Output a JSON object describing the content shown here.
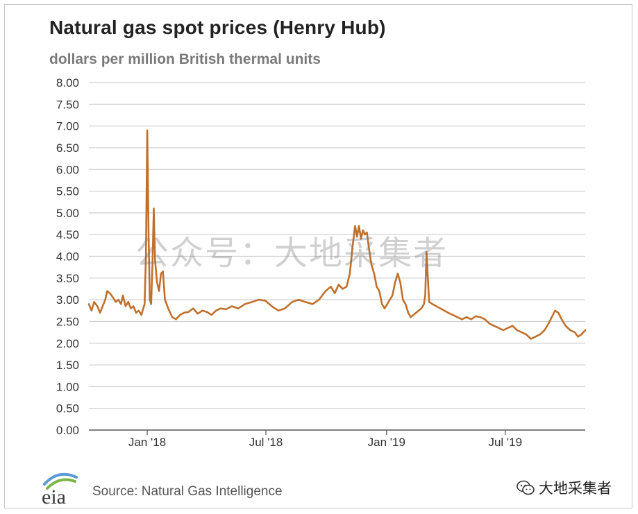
{
  "header": {
    "title": "Natural gas spot prices (Henry Hub)",
    "subtitle": "dollars per million British thermal units"
  },
  "footer": {
    "source": "Source: Natural Gas Intelligence",
    "logo_text": "eia",
    "wechat_label": "大地采集者"
  },
  "watermark": "公众号：大地采集者",
  "colors": {
    "line": "#c0702b",
    "grid": "#cfcfcf",
    "axis": "#555555"
  },
  "chart_data": {
    "type": "line",
    "title": "Natural gas spot prices (Henry Hub)",
    "ylabel": "dollars per million British thermal units",
    "xlabel": "",
    "ylim": [
      0,
      8
    ],
    "xlim": [
      "2017-10-04",
      "2019-10-31"
    ],
    "grid": true,
    "yticks": [
      "0.00",
      "0.50",
      "1.00",
      "1.50",
      "2.00",
      "2.50",
      "3.00",
      "3.50",
      "4.00",
      "4.50",
      "5.00",
      "5.50",
      "6.00",
      "6.50",
      "7.00",
      "7.50",
      "8.00"
    ],
    "xticks": [
      {
        "label": "Jan '18",
        "date": "2018-01-01"
      },
      {
        "label": "Jul '18",
        "date": "2018-07-01"
      },
      {
        "label": "Jan '19",
        "date": "2019-01-01"
      },
      {
        "label": "Jul '19",
        "date": "2019-07-01"
      }
    ],
    "series": [
      {
        "values": [
          [
            "2017-10-04",
            2.9
          ],
          [
            "2017-10-08",
            2.75
          ],
          [
            "2017-10-12",
            2.95
          ],
          [
            "2017-10-17",
            2.85
          ],
          [
            "2017-10-21",
            2.7
          ],
          [
            "2017-10-25",
            2.85
          ],
          [
            "2017-10-29",
            3.0
          ],
          [
            "2017-11-01",
            3.2
          ],
          [
            "2017-11-05",
            3.15
          ],
          [
            "2017-11-10",
            3.05
          ],
          [
            "2017-11-14",
            2.95
          ],
          [
            "2017-11-18",
            3.0
          ],
          [
            "2017-11-22",
            2.9
          ],
          [
            "2017-11-25",
            3.1
          ],
          [
            "2017-11-29",
            2.85
          ],
          [
            "2017-12-03",
            2.95
          ],
          [
            "2017-12-07",
            2.8
          ],
          [
            "2017-12-11",
            2.85
          ],
          [
            "2017-12-15",
            2.7
          ],
          [
            "2017-12-19",
            2.75
          ],
          [
            "2017-12-23",
            2.65
          ],
          [
            "2017-12-26",
            2.8
          ],
          [
            "2017-12-28",
            2.9
          ],
          [
            "2017-12-30",
            4.0
          ],
          [
            "2018-01-01",
            6.9
          ],
          [
            "2018-01-03",
            4.5
          ],
          [
            "2018-01-05",
            3.0
          ],
          [
            "2018-01-07",
            2.9
          ],
          [
            "2018-01-09",
            3.8
          ],
          [
            "2018-01-11",
            5.1
          ],
          [
            "2018-01-13",
            3.9
          ],
          [
            "2018-01-16",
            3.4
          ],
          [
            "2018-01-19",
            3.2
          ],
          [
            "2018-01-22",
            3.6
          ],
          [
            "2018-01-25",
            3.65
          ],
          [
            "2018-01-28",
            3.0
          ],
          [
            "2018-02-02",
            2.8
          ],
          [
            "2018-02-08",
            2.6
          ],
          [
            "2018-02-14",
            2.55
          ],
          [
            "2018-02-20",
            2.65
          ],
          [
            "2018-02-26",
            2.7
          ],
          [
            "2018-03-05",
            2.72
          ],
          [
            "2018-03-12",
            2.8
          ],
          [
            "2018-03-19",
            2.68
          ],
          [
            "2018-03-26",
            2.75
          ],
          [
            "2018-04-02",
            2.72
          ],
          [
            "2018-04-09",
            2.65
          ],
          [
            "2018-04-16",
            2.75
          ],
          [
            "2018-04-23",
            2.8
          ],
          [
            "2018-05-01",
            2.78
          ],
          [
            "2018-05-10",
            2.85
          ],
          [
            "2018-05-20",
            2.8
          ],
          [
            "2018-05-30",
            2.9
          ],
          [
            "2018-06-10",
            2.95
          ],
          [
            "2018-06-20",
            3.0
          ],
          [
            "2018-06-30",
            2.98
          ],
          [
            "2018-07-10",
            2.85
          ],
          [
            "2018-07-20",
            2.75
          ],
          [
            "2018-07-30",
            2.8
          ],
          [
            "2018-08-10",
            2.95
          ],
          [
            "2018-08-20",
            3.0
          ],
          [
            "2018-08-30",
            2.95
          ],
          [
            "2018-09-10",
            2.9
          ],
          [
            "2018-09-20",
            3.0
          ],
          [
            "2018-09-30",
            3.2
          ],
          [
            "2018-10-08",
            3.3
          ],
          [
            "2018-10-14",
            3.15
          ],
          [
            "2018-10-20",
            3.35
          ],
          [
            "2018-10-26",
            3.25
          ],
          [
            "2018-11-01",
            3.3
          ],
          [
            "2018-11-06",
            3.6
          ],
          [
            "2018-11-10",
            4.2
          ],
          [
            "2018-11-14",
            4.7
          ],
          [
            "2018-11-17",
            4.45
          ],
          [
            "2018-11-20",
            4.7
          ],
          [
            "2018-11-23",
            4.4
          ],
          [
            "2018-11-26",
            4.6
          ],
          [
            "2018-11-29",
            4.5
          ],
          [
            "2018-12-02",
            4.55
          ],
          [
            "2018-12-05",
            4.2
          ],
          [
            "2018-12-09",
            3.8
          ],
          [
            "2018-12-13",
            3.6
          ],
          [
            "2018-12-17",
            3.3
          ],
          [
            "2018-12-21",
            3.2
          ],
          [
            "2018-12-25",
            2.9
          ],
          [
            "2018-12-29",
            2.8
          ],
          [
            "2019-01-02",
            2.9
          ],
          [
            "2019-01-06",
            3.0
          ],
          [
            "2019-01-10",
            3.1
          ],
          [
            "2019-01-14",
            3.4
          ],
          [
            "2019-01-18",
            3.6
          ],
          [
            "2019-01-22",
            3.4
          ],
          [
            "2019-01-26",
            3.0
          ],
          [
            "2019-01-30",
            2.9
          ],
          [
            "2019-02-03",
            2.7
          ],
          [
            "2019-02-07",
            2.6
          ],
          [
            "2019-02-11",
            2.65
          ],
          [
            "2019-02-15",
            2.7
          ],
          [
            "2019-02-19",
            2.75
          ],
          [
            "2019-02-23",
            2.8
          ],
          [
            "2019-02-27",
            2.9
          ],
          [
            "2019-03-01",
            3.1
          ],
          [
            "2019-03-03",
            4.1
          ],
          [
            "2019-03-05",
            3.5
          ],
          [
            "2019-03-07",
            2.95
          ],
          [
            "2019-03-12",
            2.9
          ],
          [
            "2019-03-18",
            2.85
          ],
          [
            "2019-03-24",
            2.8
          ],
          [
            "2019-03-30",
            2.75
          ],
          [
            "2019-04-05",
            2.7
          ],
          [
            "2019-04-12",
            2.65
          ],
          [
            "2019-04-19",
            2.6
          ],
          [
            "2019-04-26",
            2.55
          ],
          [
            "2019-05-03",
            2.6
          ],
          [
            "2019-05-10",
            2.55
          ],
          [
            "2019-05-17",
            2.62
          ],
          [
            "2019-05-24",
            2.6
          ],
          [
            "2019-05-31",
            2.55
          ],
          [
            "2019-06-07",
            2.45
          ],
          [
            "2019-06-14",
            2.4
          ],
          [
            "2019-06-21",
            2.35
          ],
          [
            "2019-06-28",
            2.3
          ],
          [
            "2019-07-05",
            2.35
          ],
          [
            "2019-07-12",
            2.4
          ],
          [
            "2019-07-19",
            2.3
          ],
          [
            "2019-07-26",
            2.25
          ],
          [
            "2019-08-02",
            2.2
          ],
          [
            "2019-08-09",
            2.1
          ],
          [
            "2019-08-16",
            2.15
          ],
          [
            "2019-08-23",
            2.2
          ],
          [
            "2019-08-30",
            2.3
          ],
          [
            "2019-09-05",
            2.45
          ],
          [
            "2019-09-10",
            2.6
          ],
          [
            "2019-09-15",
            2.75
          ],
          [
            "2019-09-20",
            2.7
          ],
          [
            "2019-09-25",
            2.55
          ],
          [
            "2019-10-01",
            2.4
          ],
          [
            "2019-10-08",
            2.3
          ],
          [
            "2019-10-15",
            2.25
          ],
          [
            "2019-10-20",
            2.15
          ],
          [
            "2019-10-25",
            2.2
          ],
          [
            "2019-10-31",
            2.3
          ]
        ]
      }
    ]
  }
}
